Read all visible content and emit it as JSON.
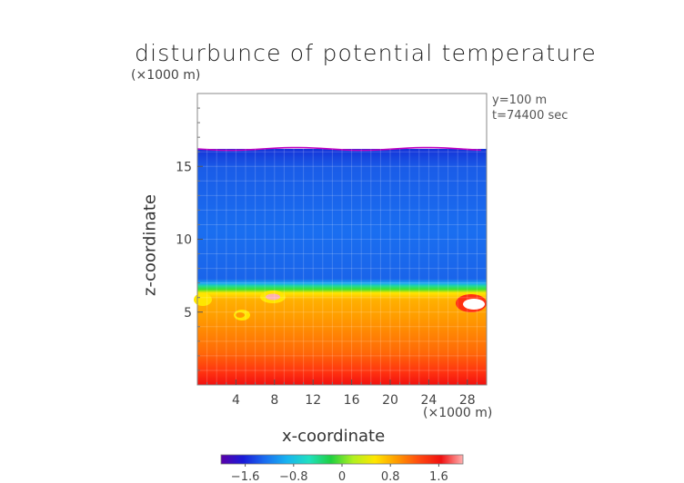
{
  "chart_data": {
    "type": "heatmap",
    "title": "disturbunce of potential temperature",
    "xlabel": "x-coordinate",
    "ylabel": "z-coordinate",
    "x_unit": "(×1000 m)",
    "z_unit": "(×1000 m)",
    "annotations": [
      "y=100 m",
      "t=74400 sec"
    ],
    "xlim": [
      0,
      30
    ],
    "ylim": [
      0,
      20
    ],
    "x_ticks": [
      4,
      8,
      12,
      16,
      20,
      24,
      28
    ],
    "y_ticks": [
      5,
      10,
      15
    ],
    "field_top_height": 16.2,
    "colorbar": {
      "range": [
        -2.0,
        2.0
      ],
      "ticks": [
        "−1.6",
        "−0.8",
        "0",
        "0.8",
        "1.6"
      ],
      "tick_values": [
        -1.6,
        -0.8,
        0,
        0.8,
        1.6
      ],
      "colormap": [
        "#5a00a8",
        "#1a1ad8",
        "#1a6ef0",
        "#18b4f0",
        "#20e0c0",
        "#20d040",
        "#b0f020",
        "#ffe600",
        "#ff9a00",
        "#ff4a10",
        "#f01010",
        "#ffb0b0"
      ]
    },
    "grid": true,
    "approx_field": {
      "layers": [
        {
          "z_range": [
            0,
            1.5
          ],
          "value": 1.7
        },
        {
          "z_range": [
            1.5,
            3.5
          ],
          "value": 1.2
        },
        {
          "z_range": [
            3.5,
            5.5
          ],
          "value": 0.7
        },
        {
          "z_range": [
            5.5,
            6.3
          ],
          "value": 0.1
        },
        {
          "z_range": [
            6.3,
            16.2
          ],
          "value": -0.85
        }
      ]
    }
  }
}
